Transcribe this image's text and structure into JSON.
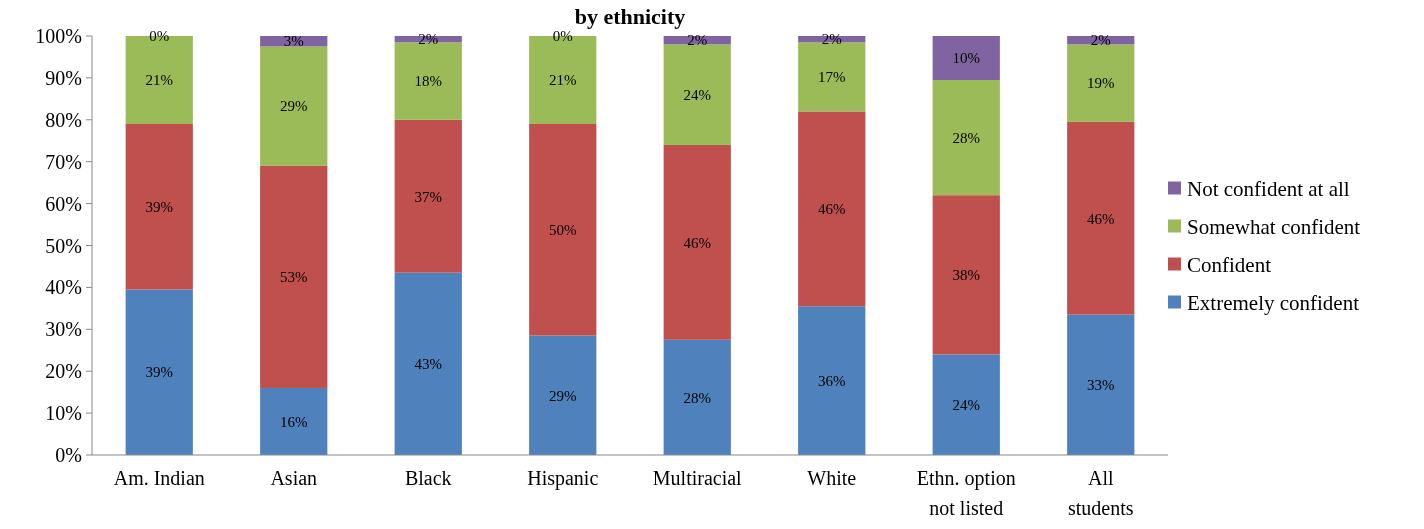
{
  "chart_data": {
    "type": "bar",
    "title": "by ethnicity",
    "stacked": true,
    "categories": [
      "Am. Indian",
      "Asian",
      "Black",
      "Hispanic",
      "Multiracial",
      "White",
      "Ethn. option\nnot listed",
      "All\nstudents"
    ],
    "series": [
      {
        "name": "Extremely confident",
        "color": "#4f81bd",
        "values": [
          39.5,
          16,
          43.5,
          28.5,
          27.5,
          35.5,
          24,
          33.5
        ],
        "value_labels": [
          "39%",
          "16%",
          "43%",
          "29%",
          "28%",
          "36%",
          "24%",
          "33%"
        ]
      },
      {
        "name": "Confident",
        "color": "#c0504d",
        "values": [
          39.5,
          53,
          36.5,
          50.5,
          46.5,
          46.5,
          38,
          46
        ],
        "value_labels": [
          "39%",
          "53%",
          "37%",
          "50%",
          "46%",
          "46%",
          "38%",
          "46%"
        ]
      },
      {
        "name": "Somewhat confident",
        "color": "#9bbb59",
        "values": [
          21,
          28.5,
          18.5,
          21,
          24,
          16.5,
          27.5,
          18.5
        ],
        "value_labels": [
          "21%",
          "29%",
          "18%",
          "21%",
          "24%",
          "17%",
          "28%",
          "19%"
        ]
      },
      {
        "name": "Not confident at all",
        "color": "#8064a2",
        "values": [
          0,
          2.5,
          1.5,
          0,
          2,
          1.5,
          10.5,
          2
        ],
        "value_labels": [
          "0%",
          "3%",
          "2%",
          "0%",
          "2%",
          "2%",
          "10%",
          "2%"
        ]
      }
    ],
    "ylim": [
      0,
      100
    ],
    "yticks": [
      {
        "value": 0,
        "label": "0%"
      },
      {
        "value": 10,
        "label": "10%"
      },
      {
        "value": 20,
        "label": "20%"
      },
      {
        "value": 30,
        "label": "30%"
      },
      {
        "value": 40,
        "label": "40%"
      },
      {
        "value": 50,
        "label": "50%"
      },
      {
        "value": 60,
        "label": "60%"
      },
      {
        "value": 70,
        "label": "70%"
      },
      {
        "value": 80,
        "label": "80%"
      },
      {
        "value": 90,
        "label": "90%"
      },
      {
        "value": 100,
        "label": "100%"
      }
    ],
    "legend": "right"
  }
}
